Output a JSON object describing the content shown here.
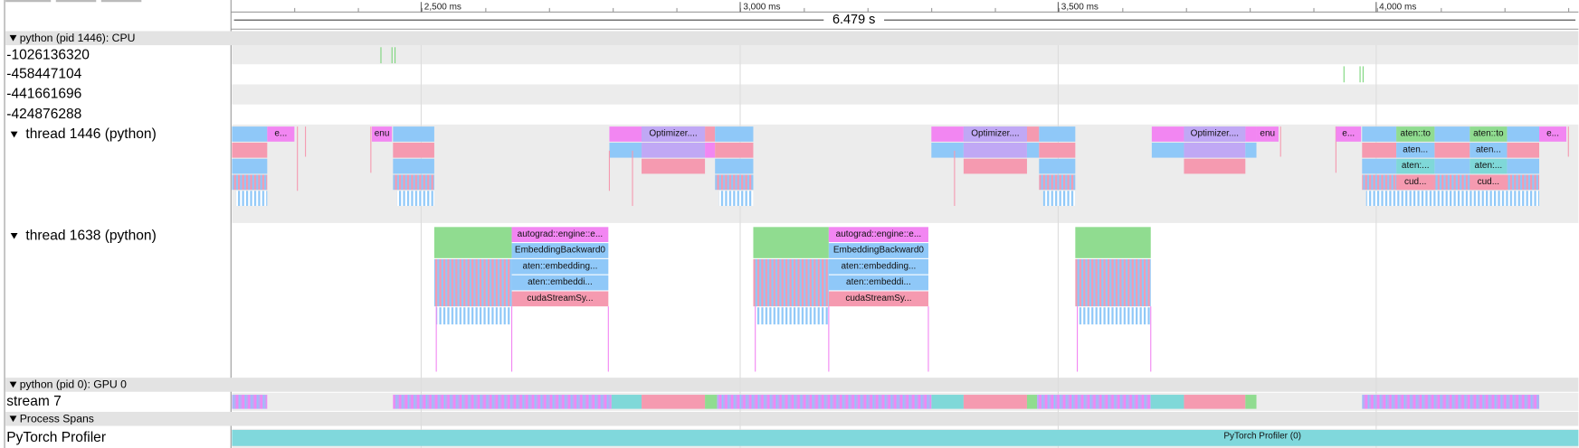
{
  "ruler": {
    "ticks": [
      "2,500 ms",
      "3,000 ms",
      "3,500 ms",
      "4,000 ms"
    ],
    "span": "6.479 s"
  },
  "processes": [
    {
      "title": "python (pid 1446): CPU",
      "rows": [
        "-1026136320",
        "-458447104",
        "-441661696",
        "-424876288",
        "thread 1446 (python)",
        "thread 1638 (python)"
      ]
    },
    {
      "title": "python (pid 0): GPU 0",
      "rows": [
        "stream 7"
      ]
    },
    {
      "title": "Process Spans",
      "rows": [
        "PyTorch Profiler"
      ]
    }
  ],
  "thread_1446_slices": [
    "e...",
    "enu",
    "Optimizer....",
    "Optimizer....",
    "Optimizer....",
    "enu",
    "e...",
    "aten::to",
    "aten...",
    "aten:...",
    "cud...",
    "aten::to",
    "aten...",
    "aten:...",
    "cud...",
    "e..."
  ],
  "thread_1638_slices": [
    "autograd::engine::e...",
    "EmbeddingBackward0",
    "aten::embedding...",
    "aten::embeddi...",
    "cudaStreamSy...",
    "autograd::engine::e...",
    "EmbeddingBackward0",
    "aten::embedding...",
    "aten::embeddi...",
    "cudaStreamSy..."
  ],
  "span_label": "PyTorch Profiler (0)"
}
